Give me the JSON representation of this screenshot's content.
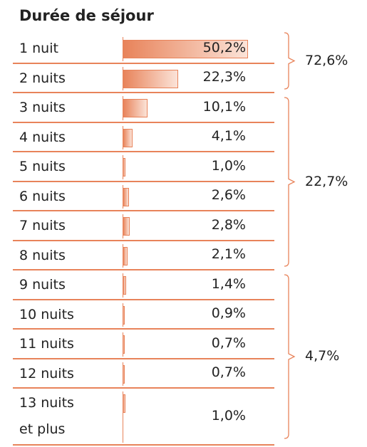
{
  "chart_data": {
    "type": "bar",
    "title": "Durée de séjour",
    "categories": [
      "1 nuit",
      "2 nuits",
      "3 nuits",
      "4 nuits",
      "5 nuits",
      "6 nuits",
      "7 nuits",
      "8 nuits",
      "9 nuits",
      "10 nuits",
      "11 nuits",
      "12 nuits",
      "13 nuits et plus"
    ],
    "values": [
      50.2,
      22.3,
      10.1,
      4.1,
      1.0,
      2.6,
      2.8,
      2.1,
      1.4,
      0.9,
      0.7,
      0.7,
      1.0
    ],
    "value_labels": [
      "50,2%",
      "22,3%",
      "10,1%",
      "4,1%",
      "1,0%",
      "2,6%",
      "2,8%",
      "2,1%",
      "1,4%",
      "0,9%",
      "0,7%",
      "0,7%",
      "1,0%"
    ],
    "color": "#e8835a",
    "groups": [
      {
        "value": 72.6,
        "label": "72,6%",
        "first": 0,
        "last": 1
      },
      {
        "value": 22.7,
        "label": "22,7%",
        "first": 2,
        "last": 7
      },
      {
        "value": 4.7,
        "label": "4,7%",
        "first": 8,
        "last": 12
      }
    ]
  }
}
